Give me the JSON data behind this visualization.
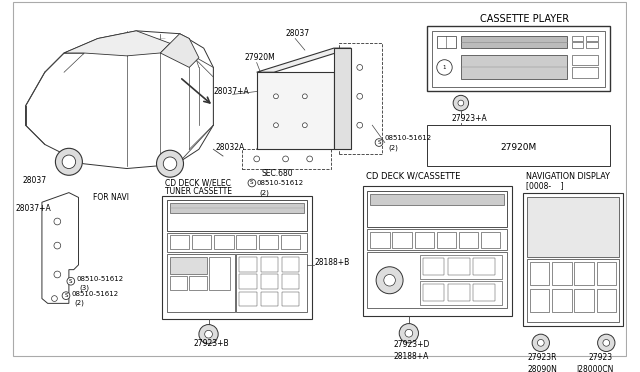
{
  "bg_color": "#ffffff",
  "lc": "#555555",
  "labels": {
    "cassette_player": "CASSETTE PLAYER",
    "cd_deck_cassette": "CD DECK W/CASSETTE",
    "nav_display": "NAVIGATION DISPLAY",
    "nav_display2": "[0008-    ]",
    "cd_deck_elec": "CD DECK W/ELEC",
    "tuner_cassette": "TUNER CASSETTE",
    "for_navi": "FOR NAVI",
    "sec680": "SEC.680",
    "p28037": "28037",
    "p28037A": "28037+A",
    "p28032A": "28032A",
    "p27920M": "27920M",
    "p27923A": "27923+A",
    "p27923B": "27923+B",
    "p27923D": "27923+D",
    "p27923R": "27923R",
    "p27923": "27923",
    "p28188B": "28188+B",
    "p28188A": "28188+A",
    "p28090N": "28090N",
    "pJ28000CN": "J28000CN",
    "screw1": "08510-51612",
    "screw1b": "(2)",
    "screw2": "08510-51612",
    "screw2b": "(2)",
    "screw3": "08510-51612",
    "screw3b": "(3)",
    "screw4": "08510-51612",
    "screw4b": "(2)"
  }
}
